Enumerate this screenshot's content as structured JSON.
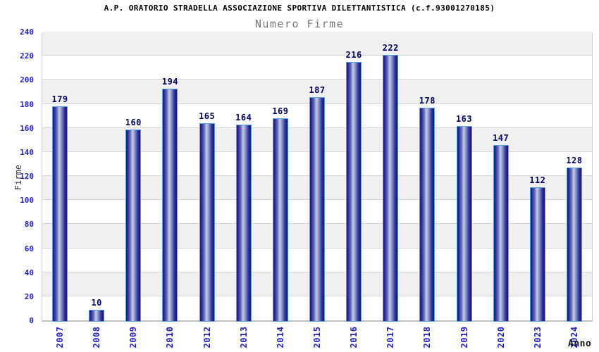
{
  "chart_data": {
    "type": "bar",
    "title": "A.P. ORATORIO STRADELLA ASSOCIAZIONE SPORTIVA DILETTANTISTICA (c.f.93001270185)",
    "subtitle": "Numero Firme",
    "xlabel": "Anno",
    "ylabel": "Firme",
    "categories": [
      "2007",
      "2008",
      "2009",
      "2010",
      "2012",
      "2013",
      "2014",
      "2015",
      "2016",
      "2017",
      "2018",
      "2019",
      "2020",
      "2023",
      "2024"
    ],
    "values": [
      179,
      10,
      160,
      194,
      165,
      164,
      169,
      187,
      216,
      222,
      178,
      163,
      147,
      112,
      128
    ],
    "ylim": [
      0,
      240
    ],
    "ytick_step": 20,
    "grid": true,
    "band_pattern": "alternating white/gray per 20 units, gray on 20-40, 60-80, 100-120, 140-160, 180-200, 220-240",
    "legend": "none",
    "colors": {
      "axis_tick_label": "#2222CC",
      "bar_value_label": "#000066",
      "title": "#000000",
      "subtitle": "#777777",
      "band_gray": "#F0F0F0",
      "gridline": "#D8D8D8",
      "bar_border": "#58A0E4",
      "bar_dark": "#16167A",
      "bar_highlight": "#C6CEEC"
    }
  }
}
